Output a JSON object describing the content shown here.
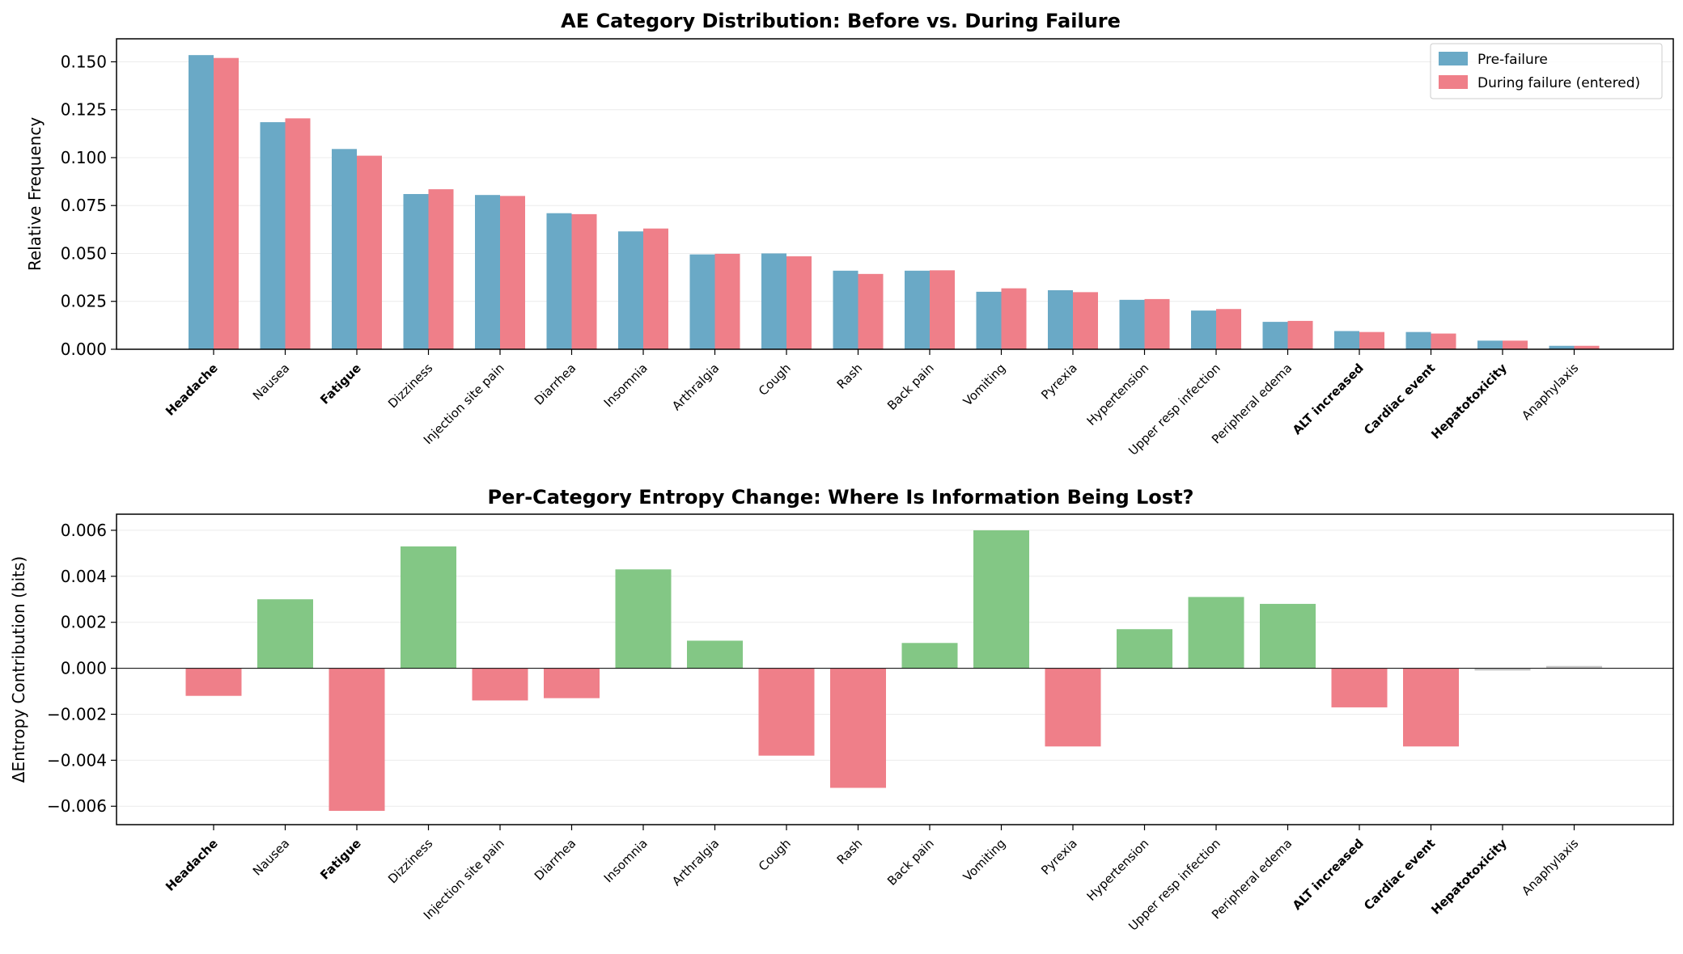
{
  "colors": {
    "pre_failure": "#6aa9c6",
    "during_failure": "#ef7f89",
    "positive": "#83c785",
    "negative": "#ef7f89",
    "near_zero": "#c8c8c8",
    "highlight_blue": "#2e86ab",
    "highlight_red": "#e63946"
  },
  "chart_data": [
    {
      "type": "bar",
      "title": "AE Category Distribution: Before vs. During Failure",
      "xlabel": "",
      "ylabel": "Relative Frequency",
      "ylim": [
        0,
        0.162
      ],
      "yticks": [
        "0.000",
        "0.025",
        "0.050",
        "0.075",
        "0.100",
        "0.125",
        "0.150"
      ],
      "grid": true,
      "legend": "top-right",
      "categories": [
        "Headache",
        "Nausea",
        "Fatigue",
        "Dizziness",
        "Injection site pain",
        "Diarrhea",
        "Insomnia",
        "Arthralgia",
        "Cough",
        "Rash",
        "Back pain",
        "Vomiting",
        "Pyrexia",
        "Hypertension",
        "Upper resp infection",
        "Peripheral edema",
        "ALT increased",
        "Cardiac event",
        "Hepatotoxicity",
        "Anaphylaxis"
      ],
      "highlight_blue": [
        "Headache",
        "Fatigue"
      ],
      "highlight_red": [
        "ALT increased",
        "Cardiac event",
        "Hepatotoxicity"
      ],
      "series": [
        {
          "name": "Pre-failure",
          "values": [
            0.1535,
            0.1185,
            0.1045,
            0.081,
            0.0805,
            0.071,
            0.0615,
            0.0495,
            0.05,
            0.041,
            0.041,
            0.03,
            0.0308,
            0.0258,
            0.0202,
            0.0143,
            0.0095,
            0.009,
            0.0045,
            0.0018
          ]
        },
        {
          "name": "During failure (entered)",
          "values": [
            0.152,
            0.1205,
            0.101,
            0.0835,
            0.08,
            0.0705,
            0.063,
            0.0498,
            0.0485,
            0.0393,
            0.0412,
            0.0318,
            0.0298,
            0.0262,
            0.021,
            0.0148,
            0.009,
            0.0082,
            0.0045,
            0.0018
          ]
        }
      ]
    },
    {
      "type": "bar",
      "title": "Per-Category Entropy Change: Where Is Information Being Lost?",
      "xlabel": "",
      "ylabel": "ΔEntropy Contribution (bits)",
      "ylim": [
        -0.0068,
        0.0067
      ],
      "yticks": [
        "−0.006",
        "−0.004",
        "−0.002",
        "0.000",
        "0.002",
        "0.004",
        "0.006"
      ],
      "grid": true,
      "categories": [
        "Headache",
        "Nausea",
        "Fatigue",
        "Dizziness",
        "Injection site pain",
        "Diarrhea",
        "Insomnia",
        "Arthralgia",
        "Cough",
        "Rash",
        "Back pain",
        "Vomiting",
        "Pyrexia",
        "Hypertension",
        "Upper resp infection",
        "Peripheral edema",
        "ALT increased",
        "Cardiac event",
        "Hepatotoxicity",
        "Anaphylaxis"
      ],
      "highlight_blue": [
        "Headache",
        "Fatigue"
      ],
      "highlight_red": [
        "ALT increased",
        "Cardiac event",
        "Hepatotoxicity"
      ],
      "values": [
        -0.0012,
        0.003,
        -0.0062,
        0.0053,
        -0.0014,
        -0.0013,
        0.0043,
        0.0012,
        -0.0038,
        -0.0052,
        0.0011,
        0.006,
        -0.0034,
        0.0017,
        0.0031,
        0.0028,
        -0.0017,
        -0.0034,
        -0.0001,
        0.0001
      ]
    }
  ]
}
